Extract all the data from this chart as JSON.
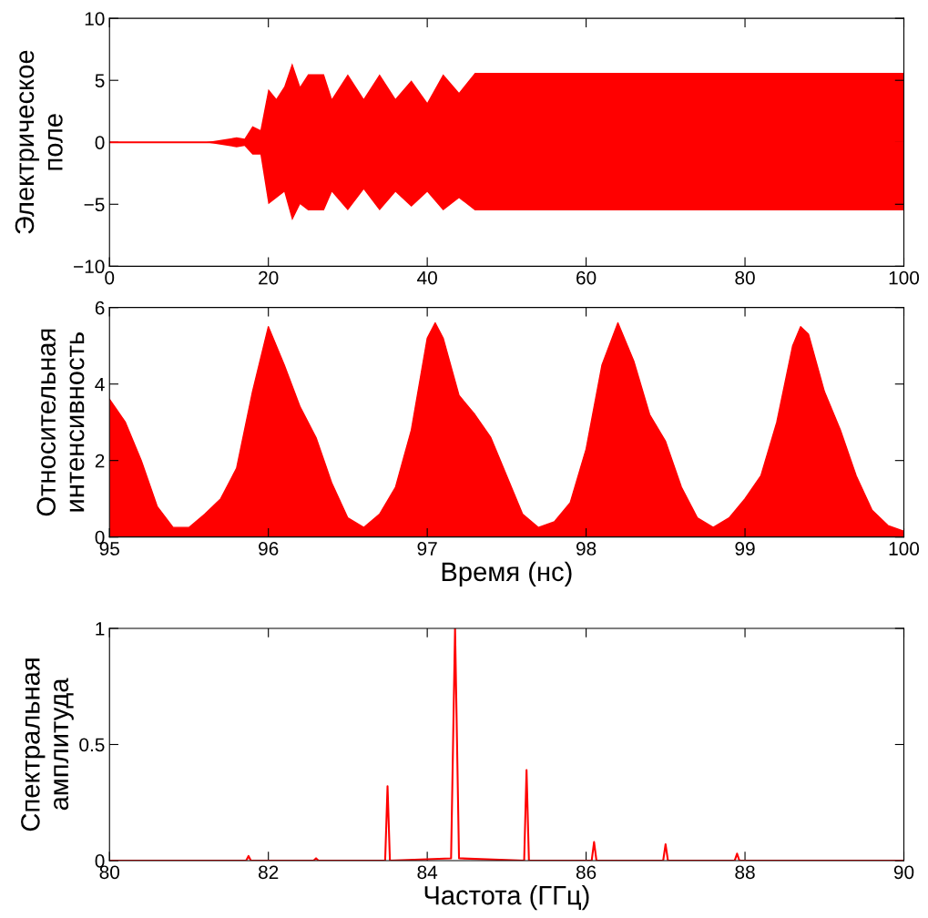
{
  "chart_data": [
    {
      "type": "line",
      "ylabel": "Электрическое\nполе",
      "xlim": [
        0,
        100
      ],
      "xticks": [
        0,
        20,
        40,
        60,
        80,
        100
      ],
      "ylim": [
        -10,
        10
      ],
      "yticks": [
        {
          "value": -10,
          "label": "−10"
        },
        {
          "value": -5,
          "label": "−5"
        },
        0,
        5,
        10
      ],
      "grid": false,
      "legend": false,
      "series": [
        {
          "color": "#ff0000",
          "x": [
            0,
            12,
            13,
            16,
            17,
            18,
            19,
            20,
            21,
            22,
            23,
            24,
            25,
            27,
            28,
            30,
            32,
            34,
            36,
            38,
            40,
            42,
            44,
            46,
            50,
            60,
            70,
            80,
            90,
            100
          ],
          "values": [
            0,
            0,
            0,
            0,
            0,
            0,
            0,
            0,
            0,
            0,
            0,
            0,
            0,
            0,
            0,
            0,
            0,
            0,
            0,
            0,
            0,
            0,
            0,
            0,
            0,
            0,
            0,
            0,
            0,
            0
          ],
          "upper": [
            0,
            0,
            0.1,
            0.4,
            0.3,
            1.3,
            1,
            4.3,
            3.5,
            4.5,
            6.4,
            4.5,
            5.5,
            5.5,
            3.5,
            5.5,
            3.5,
            5.5,
            3.5,
            5,
            3.2,
            5.5,
            4,
            5.6,
            5.6,
            5.6,
            5.6,
            5.6,
            5.6,
            5.6
          ],
          "lower": [
            0,
            0,
            -0.1,
            -0.4,
            -0.3,
            -1,
            -1,
            -5,
            -4.5,
            -4,
            -6.3,
            -5,
            -5.5,
            -5.5,
            -4,
            -5.5,
            -3.8,
            -5.5,
            -4,
            -5.2,
            -4,
            -5.5,
            -4.5,
            -5.5,
            -5.5,
            -5.5,
            -5.5,
            -5.5,
            -5.5,
            -5.5
          ]
        }
      ]
    },
    {
      "type": "area",
      "ylabel": "Относительная\nинтенсивность",
      "xlabel": "Время (нс)",
      "xlim": [
        95,
        100
      ],
      "xticks": [
        95,
        96,
        97,
        98,
        99,
        100
      ],
      "ylim": [
        0,
        6
      ],
      "yticks": [
        0,
        2,
        4,
        6
      ],
      "grid": false,
      "legend": false,
      "series": [
        {
          "color": "#ff0000",
          "x": [
            95.0,
            95.1,
            95.2,
            95.3,
            95.4,
            95.5,
            95.6,
            95.7,
            95.8,
            95.9,
            96.0,
            96.1,
            96.2,
            96.3,
            96.4,
            96.5,
            96.6,
            96.7,
            96.8,
            96.9,
            97.0,
            97.05,
            97.1,
            97.2,
            97.3,
            97.4,
            97.5,
            97.6,
            97.7,
            97.8,
            97.9,
            98.0,
            98.1,
            98.2,
            98.3,
            98.4,
            98.5,
            98.6,
            98.7,
            98.8,
            98.9,
            99.0,
            99.1,
            99.2,
            99.3,
            99.35,
            99.4,
            99.5,
            99.6,
            99.7,
            99.8,
            99.9,
            100
          ],
          "values": [
            3.6,
            3.0,
            2.0,
            0.8,
            0.25,
            0.25,
            0.6,
            1.0,
            1.8,
            3.8,
            5.5,
            4.5,
            3.4,
            2.6,
            1.4,
            0.5,
            0.25,
            0.6,
            1.3,
            2.8,
            5.2,
            5.6,
            5.2,
            3.7,
            3.2,
            2.6,
            1.6,
            0.6,
            0.25,
            0.4,
            0.9,
            2.3,
            4.5,
            5.6,
            4.6,
            3.2,
            2.5,
            1.3,
            0.5,
            0.25,
            0.5,
            1.0,
            1.6,
            3.0,
            5.0,
            5.5,
            5.3,
            3.8,
            2.8,
            1.6,
            0.7,
            0.3,
            0.15
          ]
        }
      ]
    },
    {
      "type": "line",
      "ylabel": "Спектральная\nамплитуда",
      "xlabel": "Частота (ГГц)",
      "xlim": [
        80,
        90
      ],
      "xticks": [
        80,
        82,
        84,
        86,
        88,
        90
      ],
      "ylim": [
        0,
        1
      ],
      "yticks": [
        0,
        0.5,
        1
      ],
      "grid": false,
      "legend": false,
      "series": [
        {
          "color": "#ff0000",
          "x": [
            80,
            81.72,
            81.75,
            81.78,
            82.57,
            82.6,
            82.63,
            83.47,
            83.5,
            83.53,
            84.3,
            84.35,
            84.4,
            85.22,
            85.25,
            85.28,
            86.07,
            86.1,
            86.13,
            86.97,
            87.0,
            87.03,
            87.87,
            87.9,
            87.93,
            90
          ],
          "values": [
            0,
            0,
            0.02,
            0,
            0,
            0.01,
            0,
            0,
            0.32,
            0,
            0.01,
            1.0,
            0.01,
            0,
            0.39,
            0,
            0,
            0.08,
            0,
            0,
            0.07,
            0,
            0,
            0.03,
            0,
            0
          ]
        }
      ]
    }
  ]
}
